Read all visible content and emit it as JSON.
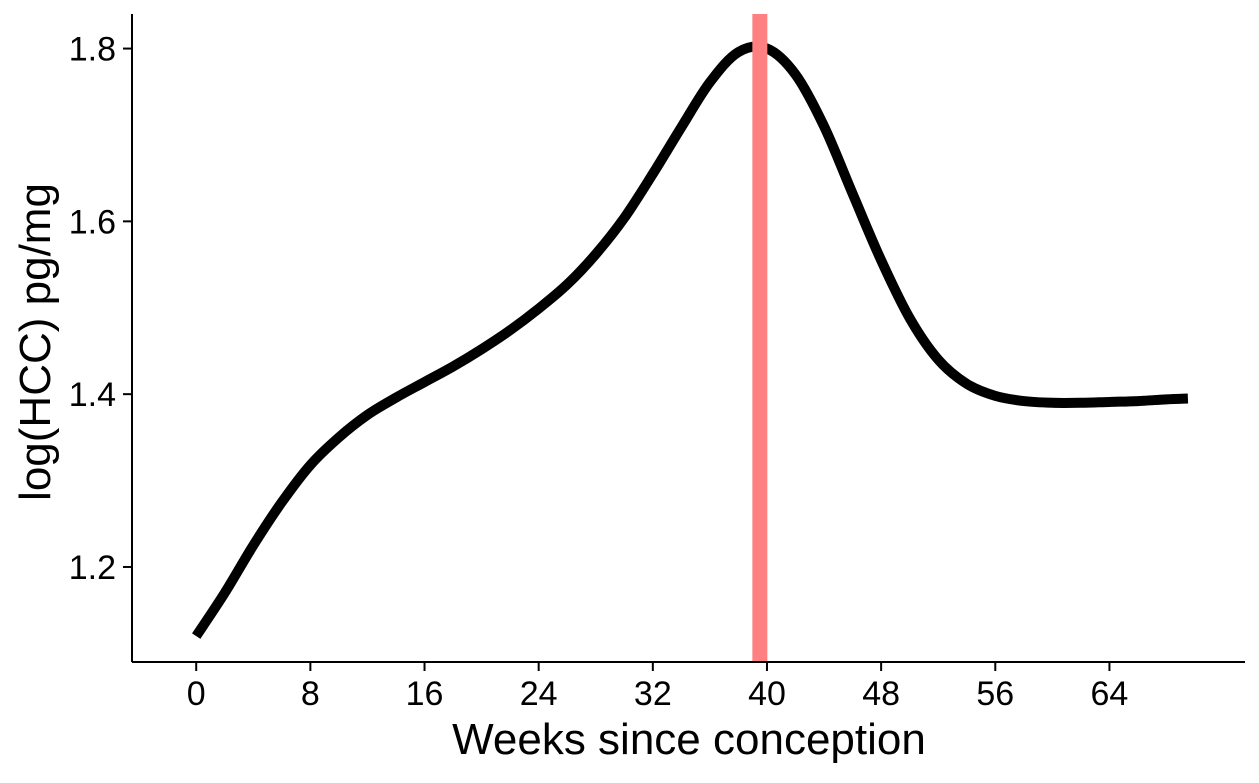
{
  "chart_data": {
    "type": "line",
    "title": "",
    "xlabel": "Weeks since conception",
    "ylabel": "log(HCC) pg/mg",
    "xlim": [
      -4.5,
      73.5
    ],
    "ylim": [
      1.09,
      1.84
    ],
    "x_ticks": [
      0,
      8,
      16,
      24,
      32,
      40,
      48,
      56,
      64
    ],
    "x_tick_labels": [
      "0",
      "8",
      "16",
      "24",
      "32",
      "40",
      "48",
      "56",
      "64"
    ],
    "y_ticks": [
      1.2,
      1.4,
      1.6,
      1.8
    ],
    "y_tick_labels": [
      "1.2",
      "1.4",
      "1.6",
      "1.8"
    ],
    "grid": false,
    "legend": "none",
    "series": [
      {
        "color": "#000000",
        "x": [
          0,
          2,
          4,
          6,
          8,
          10,
          12,
          14,
          16,
          18,
          20,
          22,
          24,
          26,
          28,
          30,
          32,
          34,
          36,
          38,
          40,
          42,
          44,
          46,
          48,
          50,
          52,
          54,
          56,
          58,
          60,
          62,
          64,
          66,
          68,
          69.5
        ],
        "y": [
          1.12,
          1.17,
          1.225,
          1.275,
          1.318,
          1.35,
          1.376,
          1.396,
          1.414,
          1.432,
          1.452,
          1.474,
          1.499,
          1.527,
          1.562,
          1.604,
          1.655,
          1.709,
          1.761,
          1.796,
          1.8,
          1.77,
          1.71,
          1.632,
          1.555,
          1.488,
          1.44,
          1.412,
          1.398,
          1.392,
          1.39,
          1.39,
          1.391,
          1.392,
          1.394,
          1.395
        ]
      }
    ],
    "vertical_lines": [
      {
        "x": 39.5,
        "color": "#ff8080"
      }
    ]
  }
}
